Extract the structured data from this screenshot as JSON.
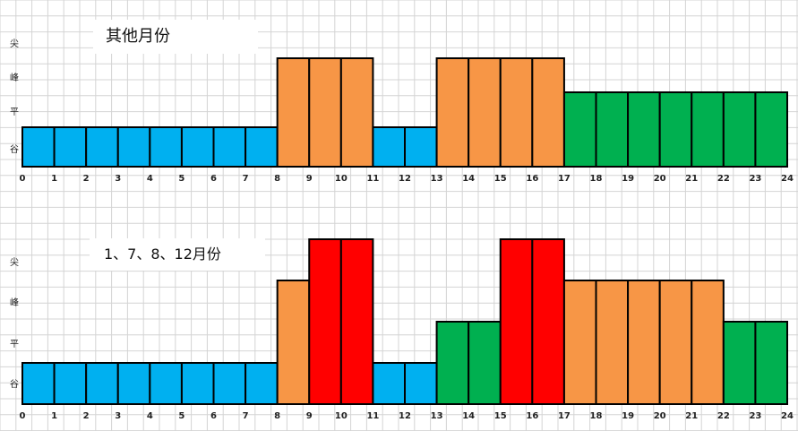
{
  "colors": {
    "valley": "#00B0F0",
    "flat": "#00B050",
    "peak": "#F79646",
    "sharp": "#FF0000",
    "grid": "#d4d4d4",
    "outline": "#000000"
  },
  "chart_data": [
    {
      "type": "bar",
      "title": "其他月份",
      "levels": [
        "谷",
        "平",
        "峰",
        "尖"
      ],
      "x_ticks": [
        "0",
        "1",
        "2",
        "3",
        "4",
        "5",
        "6",
        "7",
        "8",
        "9",
        "10",
        "11",
        "12",
        "13",
        "14",
        "15",
        "16",
        "17",
        "18",
        "19",
        "20",
        "21",
        "22",
        "23",
        "24"
      ],
      "hours": [
        0,
        1,
        2,
        3,
        4,
        5,
        6,
        7,
        8,
        9,
        10,
        11,
        12,
        13,
        14,
        15,
        16,
        17,
        18,
        19,
        20,
        21,
        22,
        23
      ],
      "values": [
        1,
        1,
        1,
        1,
        1,
        1,
        1,
        1,
        3,
        3,
        3,
        1,
        1,
        3,
        3,
        3,
        3,
        2,
        2,
        2,
        2,
        2,
        2,
        2
      ],
      "categories": [
        "谷",
        "谷",
        "谷",
        "谷",
        "谷",
        "谷",
        "谷",
        "谷",
        "峰",
        "峰",
        "峰",
        "谷",
        "谷",
        "峰",
        "峰",
        "峰",
        "峰",
        "平",
        "平",
        "平",
        "平",
        "平",
        "平",
        "平"
      ]
    },
    {
      "type": "bar",
      "title": "1、7、8、12月份",
      "levels": [
        "谷",
        "平",
        "峰",
        "尖"
      ],
      "x_ticks": [
        "0",
        "1",
        "2",
        "3",
        "4",
        "5",
        "6",
        "7",
        "8",
        "9",
        "10",
        "11",
        "12",
        "13",
        "14",
        "15",
        "16",
        "17",
        "18",
        "19",
        "20",
        "21",
        "22",
        "23",
        "24"
      ],
      "hours": [
        0,
        1,
        2,
        3,
        4,
        5,
        6,
        7,
        8,
        9,
        10,
        11,
        12,
        13,
        14,
        15,
        16,
        17,
        18,
        19,
        20,
        21,
        22,
        23
      ],
      "values": [
        1,
        1,
        1,
        1,
        1,
        1,
        1,
        1,
        3,
        4,
        4,
        1,
        1,
        2,
        2,
        4,
        4,
        3,
        3,
        3,
        3,
        3,
        2,
        2
      ],
      "categories": [
        "谷",
        "谷",
        "谷",
        "谷",
        "谷",
        "谷",
        "谷",
        "谷",
        "峰",
        "尖",
        "尖",
        "谷",
        "谷",
        "平",
        "平",
        "尖",
        "尖",
        "峰",
        "峰",
        "峰",
        "峰",
        "峰",
        "平",
        "平"
      ]
    }
  ]
}
